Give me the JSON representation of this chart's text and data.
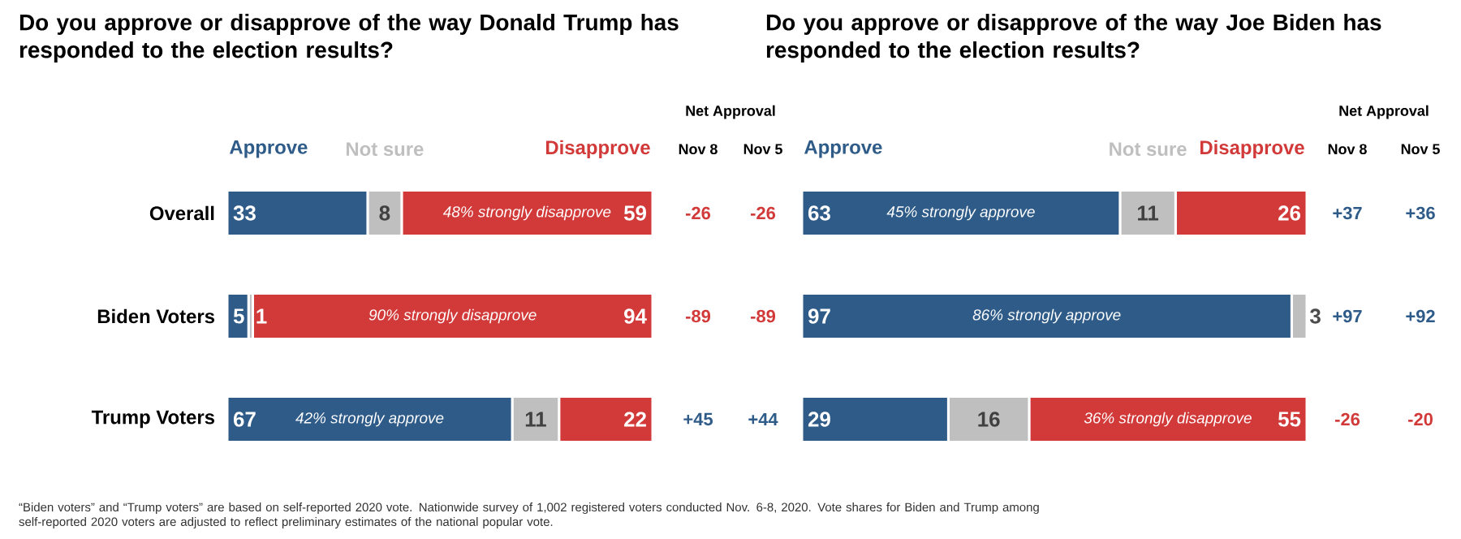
{
  "chart_data": [
    {
      "type": "bar",
      "orientation": "horizontal",
      "stacked": true,
      "title": "Do you approve or disapprove of the way Donald Trump has responded to the election results?",
      "categories": [
        "Overall",
        "Biden Voters",
        "Trump Voters"
      ],
      "series": [
        {
          "name": "Approve",
          "color": "#2e5b88",
          "values": [
            33,
            5,
            67
          ]
        },
        {
          "name": "Not sure",
          "color": "#bfbfbf",
          "values": [
            8,
            1,
            11
          ]
        },
        {
          "name": "Disapprove",
          "color": "#d23a3a",
          "values": [
            59,
            94,
            22
          ]
        }
      ],
      "data_labels": true,
      "legend": "top",
      "tick_labels": "y",
      "annotations": [
        "Net Approval",
        "Nov 8",
        "Nov 5",
        "-26",
        "-26",
        "-89",
        "-89",
        "+45",
        "+44",
        "48% strongly disapprove",
        "90% strongly disapprove",
        "42% strongly approve",
        "“Biden voters” and “Trump voters” are based on self-reported 2020 vote. Nationwide survey of 1,002 registered voters conducted Nov. 6-8, 2020. Vote shares for Biden and Trump among self-reported 2020 voters are adjusted to reflect preliminary estimates of the national popular vote."
      ]
    },
    {
      "type": "bar",
      "orientation": "horizontal",
      "stacked": true,
      "title": "Do you approve or disapprove of the way Joe Biden has responded to the election results?",
      "categories": [
        null,
        null,
        null
      ],
      "series": [
        {
          "name": "Approve",
          "color": "#2e5b88",
          "values": [
            63,
            97,
            29
          ]
        },
        {
          "name": "Not sure",
          "color": "#bfbfbf",
          "values": [
            11,
            3,
            16
          ]
        },
        {
          "name": "Disapprove",
          "color": "#d23a3a",
          "values": [
            26,
            null,
            55
          ]
        }
      ],
      "data_labels": true,
      "legend": "top",
      "annotations": [
        "Net Approval",
        "Nov 8",
        "Nov 5",
        "+37",
        "+36",
        "+97",
        "+92",
        "-26",
        "-20",
        "45% strongly approve",
        "86% strongly approve",
        "36% strongly disapprove"
      ]
    }
  ]
}
